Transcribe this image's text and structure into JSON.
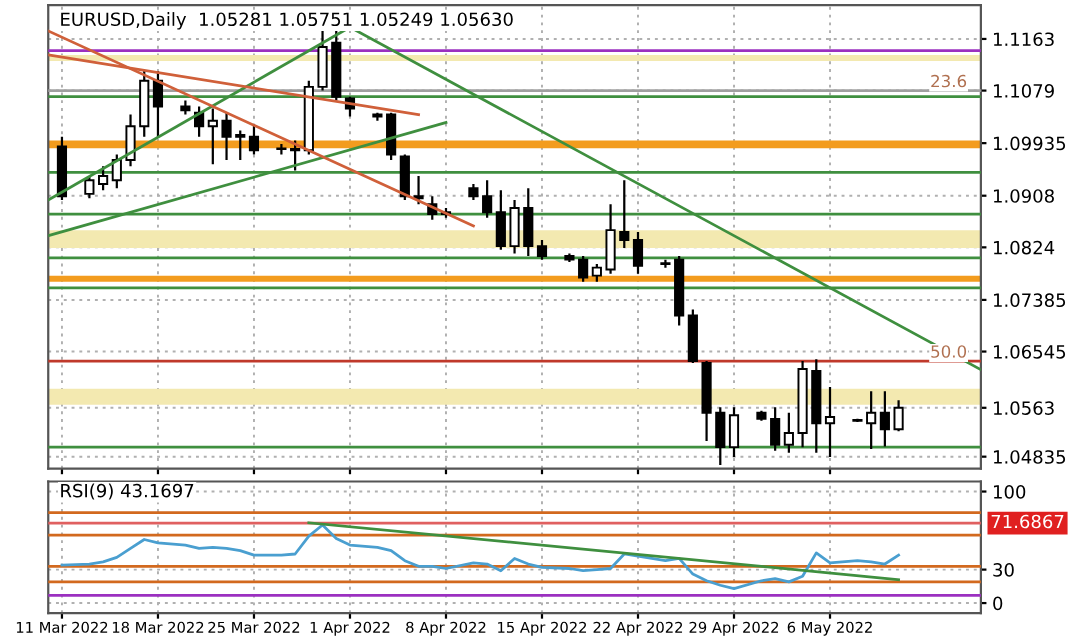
{
  "chart_data": [
    {
      "type": "candlestick",
      "title": "EURUSD,Daily  1.05281 1.05751 1.05249 1.05630",
      "x": [
        "2022-03-11",
        "2022-03-13",
        "2022-03-14",
        "2022-03-15",
        "2022-03-16",
        "2022-03-17",
        "2022-03-18",
        "2022-03-20",
        "2022-03-21",
        "2022-03-22",
        "2022-03-23",
        "2022-03-24",
        "2022-03-25",
        "2022-03-27",
        "2022-03-28",
        "2022-03-29",
        "2022-03-30",
        "2022-03-31",
        "2022-04-01",
        "2022-04-03",
        "2022-04-04",
        "2022-04-05",
        "2022-04-06",
        "2022-04-07",
        "2022-04-08",
        "2022-04-10",
        "2022-04-11",
        "2022-04-12",
        "2022-04-13",
        "2022-04-14",
        "2022-04-15",
        "2022-04-17",
        "2022-04-18",
        "2022-04-19",
        "2022-04-20",
        "2022-04-21",
        "2022-04-22",
        "2022-04-24",
        "2022-04-25",
        "2022-04-26",
        "2022-04-27",
        "2022-04-28",
        "2022-04-29",
        "2022-05-01",
        "2022-05-02",
        "2022-05-03",
        "2022-05-04",
        "2022-05-05",
        "2022-05-06",
        "2022-05-08",
        "2022-05-09",
        "2022-05-10",
        "2022-05-11"
      ],
      "ohlc": [
        [
          1.0988,
          1.1004,
          1.0901,
          1.0907
        ],
        [
          1.0911,
          1.094,
          1.0904,
          1.0933
        ],
        [
          1.0927,
          1.0956,
          1.0917,
          1.094
        ],
        [
          1.0933,
          1.0975,
          1.092,
          1.0966
        ],
        [
          1.0966,
          1.104,
          1.0956,
          1.1021
        ],
        [
          1.1021,
          1.1111,
          1.1004,
          1.1095
        ],
        [
          1.1095,
          1.1111,
          1.1004,
          1.1053
        ],
        [
          1.1053,
          1.1063,
          1.104,
          1.1047
        ],
        [
          1.1043,
          1.1053,
          1.1004,
          1.1021
        ],
        [
          1.1021,
          1.105,
          1.0959,
          1.103
        ],
        [
          1.103,
          1.1043,
          1.0966,
          1.1004
        ],
        [
          1.1007,
          1.1014,
          1.0966,
          1.1004
        ],
        [
          1.1004,
          1.1024,
          1.0975,
          1.0982
        ],
        [
          1.0985,
          1.0992,
          1.0975,
          1.0984
        ],
        [
          1.0984,
          1.0998,
          1.0949,
          1.0982
        ],
        [
          1.0982,
          1.1095,
          1.0975,
          1.1085
        ],
        [
          1.1085,
          1.1176,
          1.1079,
          1.115
        ],
        [
          1.1157,
          1.1182,
          1.1063,
          1.1069
        ],
        [
          1.1066,
          1.1069,
          1.1037,
          1.105
        ],
        [
          1.104,
          1.1043,
          1.103,
          1.1037
        ],
        [
          1.104,
          1.1043,
          1.0966,
          1.0975
        ],
        [
          1.0972,
          1.0975,
          1.0901,
          1.0907
        ],
        [
          1.0907,
          1.094,
          1.0894,
          1.0904
        ],
        [
          1.0894,
          1.0907,
          1.0869,
          1.0878
        ],
        [
          1.0881,
          1.0888,
          1.0872,
          1.0878
        ],
        [
          1.092,
          1.0927,
          1.0901,
          1.0907
        ],
        [
          1.0907,
          1.0933,
          1.0872,
          1.0881
        ],
        [
          1.0881,
          1.0917,
          1.082,
          1.0826
        ],
        [
          1.0826,
          1.0901,
          1.0814,
          1.0888
        ],
        [
          1.0888,
          1.092,
          1.081,
          1.0826
        ],
        [
          1.0826,
          1.0836,
          1.0804,
          1.081
        ],
        [
          1.081,
          1.0814,
          1.08,
          1.0804
        ],
        [
          1.0804,
          1.081,
          1.0768,
          1.0775
        ],
        [
          1.0778,
          1.0797,
          1.0768,
          1.0791
        ],
        [
          1.0788,
          1.0894,
          1.0781,
          1.0852
        ],
        [
          1.0849,
          1.0933,
          1.0823,
          1.0836
        ],
        [
          1.0836,
          1.0849,
          1.0781,
          1.0794
        ],
        [
          1.0798,
          1.0804,
          1.0791,
          1.0797
        ],
        [
          1.0804,
          1.081,
          1.0697,
          1.0713
        ],
        [
          1.0713,
          1.0723,
          1.0636,
          1.0639
        ],
        [
          1.0636,
          1.0639,
          1.0509,
          1.0555
        ],
        [
          1.0555,
          1.0564,
          1.047,
          1.0499
        ],
        [
          1.0499,
          1.0564,
          1.0483,
          1.0551
        ],
        [
          1.0555,
          1.0558,
          1.0542,
          1.0545
        ],
        [
          1.0545,
          1.0564,
          1.0493,
          1.0503
        ],
        [
          1.0503,
          1.0555,
          1.049,
          1.0522
        ],
        [
          1.0522,
          1.0639,
          1.0499,
          1.0626
        ],
        [
          1.0623,
          1.0642,
          1.049,
          1.0538
        ],
        [
          1.0538,
          1.0597,
          1.0483,
          1.0548
        ],
        [
          1.0543,
          1.0545,
          1.054,
          1.0542
        ],
        [
          1.0538,
          1.059,
          1.0496,
          1.0555
        ],
        [
          1.0555,
          1.059,
          1.05,
          1.0528
        ],
        [
          1.05281,
          1.05751,
          1.05249,
          1.0563
        ]
      ],
      "series": [
        {
          "type": "line",
          "color": "#3f8f3f",
          "x": [
            "2022-03-10",
            "2022-04-01"
          ],
          "values": [
            1.0901,
            1.1182
          ]
        },
        {
          "type": "line",
          "color": "#3f8f3f",
          "x": [
            "2022-03-10",
            "2022-04-08"
          ],
          "values": [
            1.0843,
            1.1027
          ]
        },
        {
          "type": "line",
          "color": "#3f8f3f",
          "x": [
            "2022-04-01",
            "2022-05-17"
          ],
          "values": [
            1.1182,
            1.0625
          ]
        },
        {
          "type": "line",
          "color": "#d0603a",
          "x": [
            "2022-03-10",
            "2022-04-10"
          ],
          "values": [
            1.1176,
            1.0859
          ]
        },
        {
          "type": "line",
          "color": "#d0603a",
          "x": [
            "2022-03-10",
            "2022-04-06"
          ],
          "values": [
            1.1137,
            1.104
          ]
        }
      ],
      "bands": [
        {
          "axis": "y",
          "from": 1.1127,
          "to": 1.1137,
          "color": "#f3e9b0"
        },
        {
          "axis": "y",
          "from": 1.0985,
          "to": 1.0998,
          "color": "#f39c1e"
        },
        {
          "axis": "y",
          "from": 1.0823,
          "to": 1.0852,
          "color": "#f3e9b0"
        },
        {
          "axis": "y",
          "from": 1.0768,
          "to": 1.0778,
          "color": "#f39c1e"
        },
        {
          "axis": "y",
          "from": 1.0568,
          "to": 1.0594,
          "color": "#f3e9b0"
        }
      ],
      "ref_lines": [
        {
          "axis": "y",
          "value": 1.1144,
          "color": "#9b30c0"
        },
        {
          "axis": "y",
          "value": 1.1079,
          "color": "#a0a0a0"
        },
        {
          "axis": "y",
          "value": 1.1069,
          "color": "#3f8f3f"
        },
        {
          "axis": "y",
          "value": 1.0946,
          "color": "#3f8f3f"
        },
        {
          "axis": "y",
          "value": 1.0878,
          "color": "#3f8f3f"
        },
        {
          "axis": "y",
          "value": 1.0807,
          "color": "#3f8f3f"
        },
        {
          "axis": "y",
          "value": 1.0758,
          "color": "#3f8f3f"
        },
        {
          "axis": "y",
          "value": 1.0639,
          "color": "#c0392b"
        },
        {
          "axis": "y",
          "value": 1.0499,
          "color": "#3f8f3f"
        }
      ],
      "xlim": [
        "2022-03-10",
        "2022-05-17"
      ],
      "xticks": [
        {
          "value": "2022-03-11",
          "label": null
        },
        {
          "value": "2022-03-18",
          "label": null
        },
        {
          "value": "2022-03-25",
          "label": null
        },
        {
          "value": "2022-04-01",
          "label": null
        },
        {
          "value": "2022-04-08",
          "label": null
        },
        {
          "value": "2022-04-15",
          "label": null
        },
        {
          "value": "2022-04-22",
          "label": null
        },
        {
          "value": "2022-04-29",
          "label": null
        },
        {
          "value": "2022-05-06",
          "label": null
        }
      ],
      "ylim": [
        1.0464,
        1.1218
      ],
      "yticks": [
        1.1163,
        1.1079,
        1.09935,
        1.0908,
        1.0824,
        1.07385,
        1.06545,
        1.0563,
        1.04835
      ],
      "annotations": [
        {
          "text": "23.6",
          "x": "2022-05-16",
          "y": 1.1079
        },
        {
          "text": "50.0",
          "x": "2022-05-16",
          "y": 1.0639
        }
      ],
      "tick_labels": "y",
      "grid": true
    },
    {
      "type": "line",
      "title": "RSI(9) 43.1697",
      "x": [
        "2022-03-11",
        "2022-03-13",
        "2022-03-14",
        "2022-03-15",
        "2022-03-16",
        "2022-03-17",
        "2022-03-18",
        "2022-03-20",
        "2022-03-21",
        "2022-03-22",
        "2022-03-23",
        "2022-03-24",
        "2022-03-25",
        "2022-03-27",
        "2022-03-28",
        "2022-03-29",
        "2022-03-30",
        "2022-03-31",
        "2022-04-01",
        "2022-04-03",
        "2022-04-04",
        "2022-04-05",
        "2022-04-06",
        "2022-04-07",
        "2022-04-08",
        "2022-04-10",
        "2022-04-11",
        "2022-04-12",
        "2022-04-13",
        "2022-04-14",
        "2022-04-15",
        "2022-04-17",
        "2022-04-18",
        "2022-04-19",
        "2022-04-20",
        "2022-04-21",
        "2022-04-22",
        "2022-04-24",
        "2022-04-25",
        "2022-04-26",
        "2022-04-27",
        "2022-04-28",
        "2022-04-29",
        "2022-05-01",
        "2022-05-02",
        "2022-05-03",
        "2022-05-04",
        "2022-05-05",
        "2022-05-06",
        "2022-05-08",
        "2022-05-09",
        "2022-05-10",
        "2022-05-11"
      ],
      "series": [
        {
          "color": "#4a9fd0",
          "values": [
            34,
            35,
            37,
            41,
            49,
            57,
            54,
            52,
            49,
            50,
            49,
            47,
            43,
            43,
            44,
            60,
            70,
            58,
            52,
            50,
            47,
            38,
            33,
            33,
            31,
            36,
            35,
            29,
            40,
            35,
            32,
            31,
            29,
            30,
            31,
            44,
            42,
            38,
            40,
            26,
            20,
            16,
            13,
            20,
            22,
            19,
            24,
            45,
            36,
            38,
            37,
            35,
            43
          ]
        },
        {
          "type": "line",
          "color": "#3f8f3f",
          "x": [
            "2022-03-29",
            "2022-05-11"
          ],
          "values": [
            72,
            21
          ]
        }
      ],
      "ref_lines": [
        {
          "axis": "y",
          "value": 81,
          "color": "#d2691e"
        },
        {
          "axis": "y",
          "value": 71.6867,
          "label": "71.6867",
          "color": "#e06060"
        },
        {
          "axis": "y",
          "value": 61,
          "color": "#d2691e"
        },
        {
          "axis": "y",
          "value": 33,
          "color": "#d2691e"
        },
        {
          "axis": "y",
          "value": 19,
          "color": "#d2691e"
        },
        {
          "axis": "y",
          "value": 7,
          "color": "#9b30c0"
        }
      ],
      "xlim": [
        "2022-03-10",
        "2022-05-17"
      ],
      "xticks": [
        {
          "value": "2022-03-11",
          "label": "11 Mar 2022"
        },
        {
          "value": "2022-03-18",
          "label": "18 Mar 2022"
        },
        {
          "value": "2022-03-25",
          "label": "25 Mar 2022"
        },
        {
          "value": "2022-04-01",
          "label": "1 Apr 2022"
        },
        {
          "value": "2022-04-08",
          "label": "8 Apr 2022"
        },
        {
          "value": "2022-04-15",
          "label": "15 Apr 2022"
        },
        {
          "value": "2022-04-22",
          "label": "22 Apr 2022"
        },
        {
          "value": "2022-04-29",
          "label": "29 Apr 2022"
        },
        {
          "value": "2022-05-06",
          "label": "6 May 2022"
        }
      ],
      "ylim": [
        -9,
        109
      ],
      "yticks": [
        100,
        30,
        0
      ],
      "grid": true
    }
  ]
}
